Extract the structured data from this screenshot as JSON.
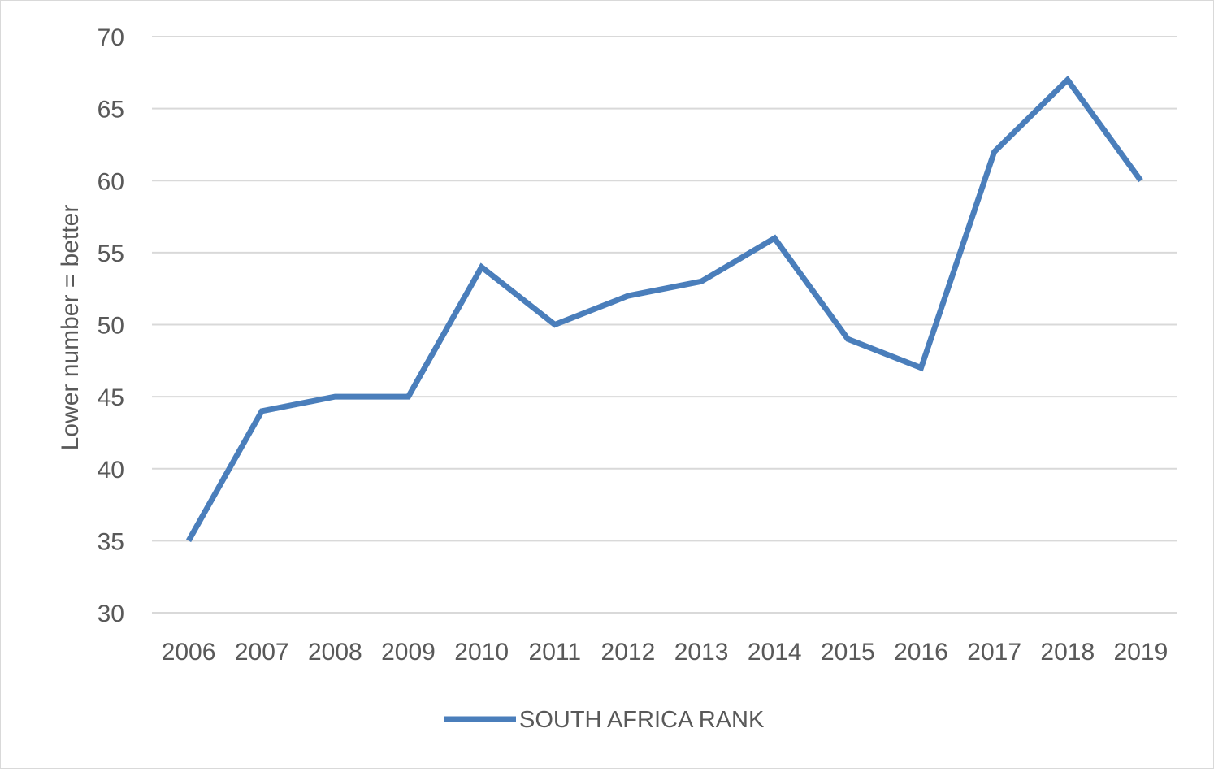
{
  "chart_data": {
    "type": "line",
    "title": "",
    "xlabel": "",
    "ylabel": "Lower number = better",
    "categories": [
      "2006",
      "2007",
      "2008",
      "2009",
      "2010",
      "2011",
      "2012",
      "2013",
      "2014",
      "2015",
      "2016",
      "2017",
      "2018",
      "2019"
    ],
    "series": [
      {
        "name": "SOUTH AFRICA RANK",
        "color": "#4a7ebb",
        "values": [
          35,
          44,
          45,
          45,
          54,
          50,
          52,
          53,
          56,
          49,
          47,
          62,
          67,
          60
        ]
      }
    ],
    "ylim": [
      30,
      70
    ],
    "yticks": [
      30,
      35,
      40,
      45,
      50,
      55,
      60,
      65,
      70
    ],
    "grid": true,
    "legend": "bottom"
  }
}
